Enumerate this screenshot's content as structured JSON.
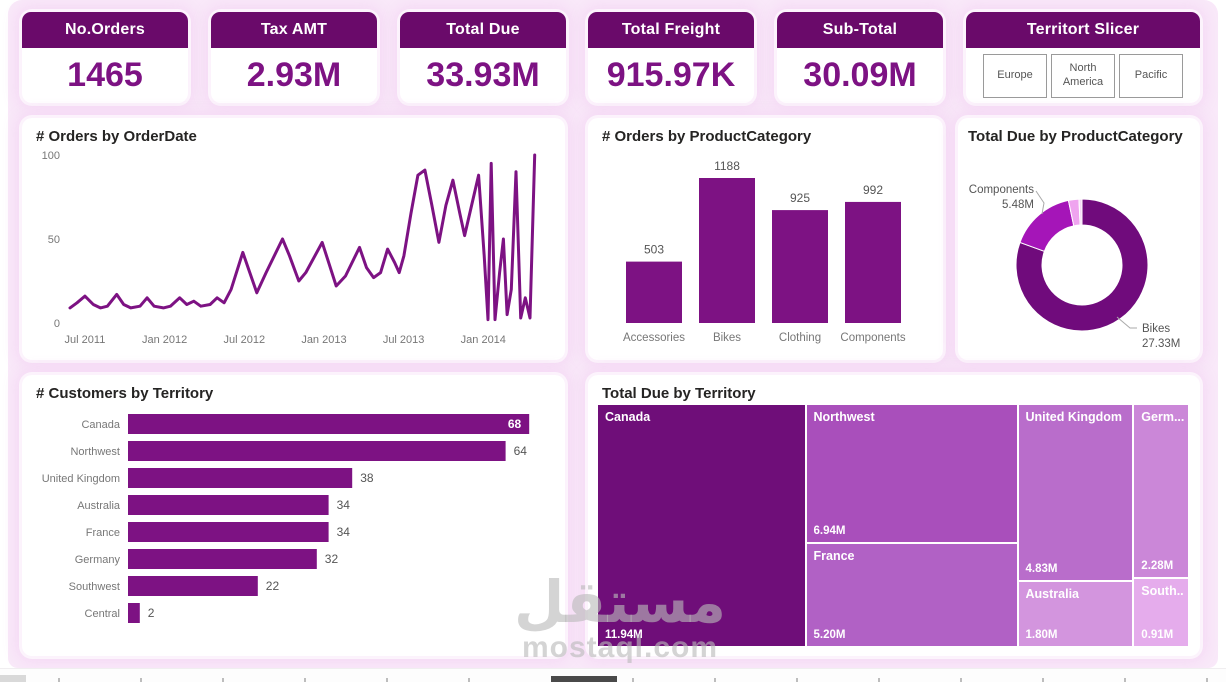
{
  "kpi_cards": [
    {
      "title": "No.Orders",
      "value": "1465"
    },
    {
      "title": "Tax AMT",
      "value": "2.93M"
    },
    {
      "title": "Total Due",
      "value": "33.93M"
    },
    {
      "title": "Total Freight",
      "value": "915.97K"
    },
    {
      "title": "Sub-Total",
      "value": "30.09M"
    }
  ],
  "slicer": {
    "title": "Territort Slicer",
    "options": [
      "Europe",
      "North America",
      "Pacific"
    ]
  },
  "colors": {
    "kpi_header": "#6a0a6a",
    "kpi_value": "#7d1283",
    "series_purple": "#7d1283",
    "canvas_pink": "#f9e9f9",
    "axis_text": "#777777"
  },
  "watermark": {
    "arabic": "مستقل",
    "domain": "mostaql.com"
  },
  "chart_data": [
    {
      "type": "line",
      "title": "# Orders by OrderDate",
      "xlabel": "OrderDate",
      "ylabel": "# Orders",
      "ylim": [
        0,
        100
      ],
      "y_ticks": [
        100,
        50,
        0
      ],
      "x_ticks": [
        "Jul 2011",
        "Jan 2012",
        "Jul 2012",
        "Jan 2013",
        "Jul 2013",
        "Jan 2014"
      ],
      "line_color": "#7d1283",
      "points": [
        [
          0.0,
          9
        ],
        [
          0.015,
          12
        ],
        [
          0.032,
          16
        ],
        [
          0.05,
          11
        ],
        [
          0.065,
          9
        ],
        [
          0.08,
          10
        ],
        [
          0.1,
          17
        ],
        [
          0.115,
          11
        ],
        [
          0.13,
          9
        ],
        [
          0.15,
          10
        ],
        [
          0.165,
          15
        ],
        [
          0.18,
          10
        ],
        [
          0.2,
          9
        ],
        [
          0.215,
          10
        ],
        [
          0.235,
          15
        ],
        [
          0.25,
          11
        ],
        [
          0.265,
          13
        ],
        [
          0.28,
          10
        ],
        [
          0.3,
          11
        ],
        [
          0.315,
          15
        ],
        [
          0.33,
          12
        ],
        [
          0.345,
          20
        ],
        [
          0.37,
          42
        ],
        [
          0.385,
          30
        ],
        [
          0.4,
          18
        ],
        [
          0.42,
          30
        ],
        [
          0.455,
          50
        ],
        [
          0.47,
          40
        ],
        [
          0.49,
          25
        ],
        [
          0.505,
          30
        ],
        [
          0.54,
          48
        ],
        [
          0.555,
          35
        ],
        [
          0.57,
          22
        ],
        [
          0.59,
          28
        ],
        [
          0.62,
          45
        ],
        [
          0.635,
          33
        ],
        [
          0.65,
          27
        ],
        [
          0.665,
          30
        ],
        [
          0.68,
          44
        ],
        [
          0.695,
          36
        ],
        [
          0.705,
          30
        ],
        [
          0.715,
          40
        ],
        [
          0.73,
          65
        ],
        [
          0.745,
          88
        ],
        [
          0.76,
          91
        ],
        [
          0.775,
          70
        ],
        [
          0.79,
          48
        ],
        [
          0.805,
          70
        ],
        [
          0.82,
          85
        ],
        [
          0.835,
          65
        ],
        [
          0.845,
          52
        ],
        [
          0.86,
          70
        ],
        [
          0.875,
          88
        ],
        [
          0.887,
          40
        ],
        [
          0.895,
          2
        ],
        [
          0.902,
          95
        ],
        [
          0.91,
          2
        ],
        [
          0.92,
          30
        ],
        [
          0.928,
          50
        ],
        [
          0.936,
          5
        ],
        [
          0.945,
          20
        ],
        [
          0.955,
          90
        ],
        [
          0.965,
          3
        ],
        [
          0.975,
          15
        ],
        [
          0.985,
          3
        ],
        [
          0.995,
          100
        ]
      ]
    },
    {
      "type": "bar",
      "title": "# Orders by ProductCategory",
      "categories": [
        "Accessories",
        "Bikes",
        "Clothing",
        "Components"
      ],
      "values": [
        503,
        1188,
        925,
        992
      ],
      "bar_color": "#7d1283"
    },
    {
      "type": "pie",
      "title": "Total Due by ProductCategory",
      "slices": [
        {
          "label": "Bikes",
          "value": 27.33,
          "value_text": "27.33M",
          "color": "#700b7c"
        },
        {
          "label": "Components",
          "value": 5.48,
          "value_text": "5.48M",
          "color": "#a515b8"
        },
        {
          "label": "",
          "value": 0.87,
          "value_text": "",
          "color": "#efa4ef"
        },
        {
          "label": "",
          "value": 0.25,
          "value_text": "",
          "color": "#f6d8f6"
        }
      ]
    },
    {
      "type": "bar-horizontal",
      "title": "# Customers by Territory",
      "categories": [
        "Canada",
        "Northwest",
        "United Kingdom",
        "Australia",
        "France",
        "Germany",
        "Southwest",
        "Central"
      ],
      "values": [
        68,
        64,
        38,
        34,
        34,
        32,
        22,
        2
      ],
      "bar_color": "#7d1283"
    },
    {
      "type": "treemap",
      "title": "Total Due by Territory",
      "nodes": [
        {
          "name": "Canada",
          "value": 11.94,
          "value_text": "11.94M",
          "color": "#6f0e79"
        },
        {
          "name": "Northwest",
          "value": 6.94,
          "value_text": "6.94M",
          "color": "#a94fbb"
        },
        {
          "name": "France",
          "value": 5.2,
          "value_text": "5.20M",
          "color": "#b161c5"
        },
        {
          "name": "United Kingdom",
          "value": 4.83,
          "value_text": "4.83M",
          "color": "#b96dcb"
        },
        {
          "name": "Australia",
          "value": 1.8,
          "value_text": "1.80M",
          "color": "#d395de"
        },
        {
          "name": "Germ...",
          "value": 2.28,
          "value_text": "2.28M",
          "color": "#cb87d8"
        },
        {
          "name": "South...",
          "value": 0.91,
          "value_text": "0.91M",
          "color": "#e5acec"
        }
      ],
      "layout_columns": [
        [
          0
        ],
        [
          1,
          2
        ],
        [
          3,
          4
        ],
        [
          5,
          6
        ]
      ]
    }
  ]
}
